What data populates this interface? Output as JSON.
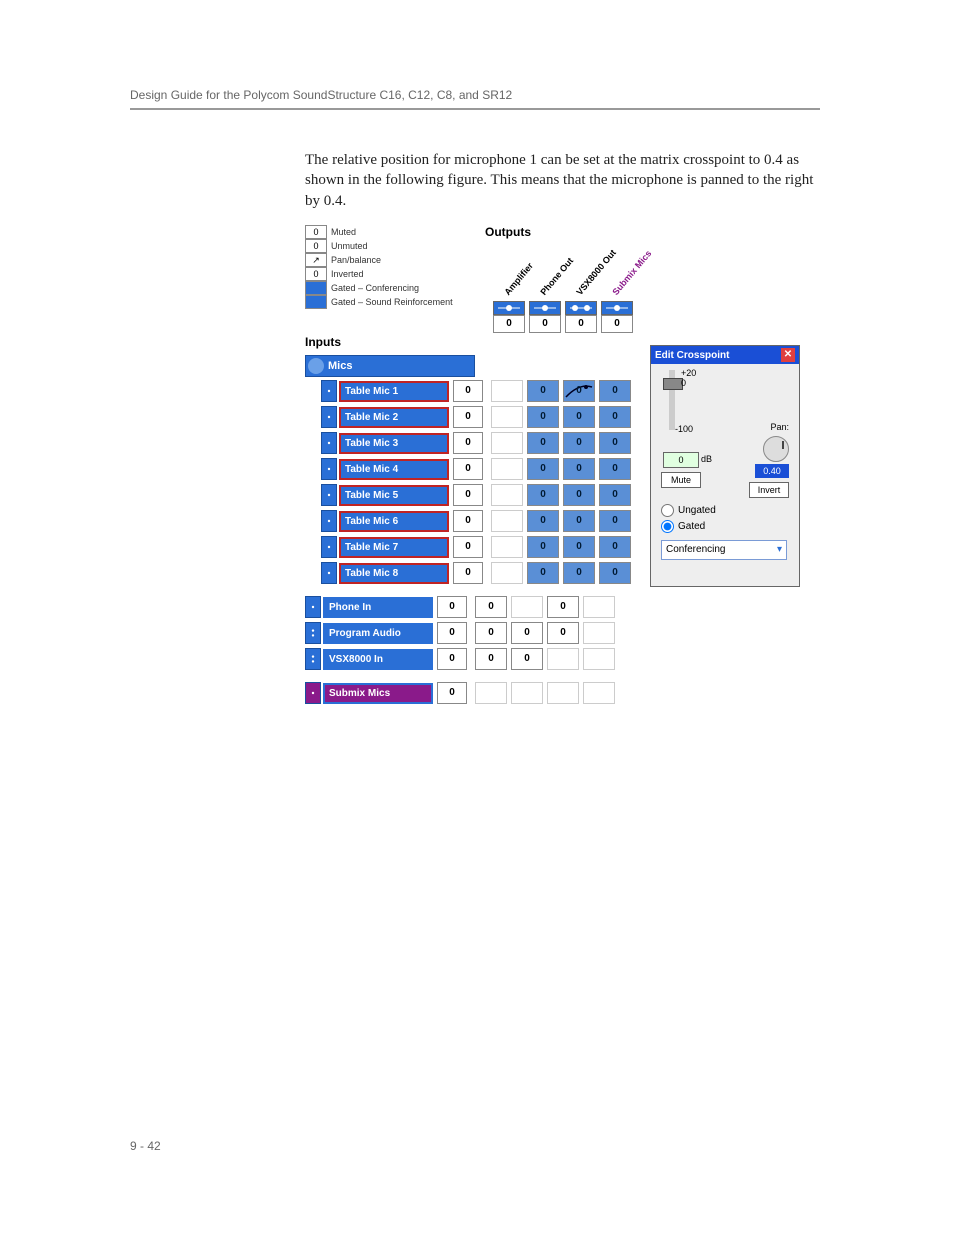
{
  "header": "Design Guide for the Polycom SoundStructure C16, C12, C8, and SR12",
  "body_text": "The relative position for microphone 1 can be set at the matrix crosspoint to 0.4 as shown in the following figure. This means that the microphone is panned to the right by 0.4.",
  "page_num": "9 - 42",
  "legend": [
    {
      "sw": "0",
      "txt": "Muted",
      "cls": ""
    },
    {
      "sw": "0",
      "txt": "Unmuted",
      "cls": ""
    },
    {
      "sw": "↗",
      "txt": "Pan/balance",
      "cls": ""
    },
    {
      "sw": "0",
      "txt": "Inverted",
      "cls": ""
    },
    {
      "sw": "",
      "txt": "Gated – Conferencing",
      "cls": "blue"
    },
    {
      "sw": "",
      "txt": "Gated – Sound Reinforcement",
      "cls": "blue"
    }
  ],
  "labels": {
    "outputs": "Outputs",
    "inputs": "Inputs",
    "mics": "Mics"
  },
  "outputs": [
    {
      "name": "Amplifier",
      "ind": "mono",
      "mag": false
    },
    {
      "name": "Phone Out",
      "ind": "mono",
      "mag": false
    },
    {
      "name": "VSX8000 Out",
      "ind": "stereo",
      "mag": false
    },
    {
      "name": "Submix Mics",
      "ind": "mono",
      "mag": true
    }
  ],
  "mic_rows": [
    {
      "name": "Table Mic 1",
      "pan": true
    },
    {
      "name": "Table Mic 2",
      "pan": false
    },
    {
      "name": "Table Mic 3",
      "pan": false
    },
    {
      "name": "Table Mic 4",
      "pan": false
    },
    {
      "name": "Table Mic 5",
      "pan": false
    },
    {
      "name": "Table Mic 6",
      "pan": false
    },
    {
      "name": "Table Mic 7",
      "pan": false
    },
    {
      "name": "Table Mic 8",
      "pan": false
    }
  ],
  "mic_cells_blue": [
    1,
    2,
    3
  ],
  "extra_rows": [
    {
      "name": "Phone In",
      "ind": "mono",
      "border": "none",
      "cells": [
        "w",
        "e",
        "w",
        "e"
      ]
    },
    {
      "name": "Program Audio",
      "ind": "stereo",
      "border": "none",
      "cells": [
        "w",
        "w",
        "w",
        "e"
      ]
    },
    {
      "name": "VSX8000 In",
      "ind": "stereo",
      "border": "none",
      "cells": [
        "w",
        "w",
        "e",
        "e"
      ]
    }
  ],
  "submix_row": {
    "name": "Submix Mics",
    "ind": "mono",
    "border": "none",
    "cells": [
      "e",
      "e",
      "e",
      "e"
    ]
  },
  "popup": {
    "title": "Edit Crosspoint",
    "tick20": "+20",
    "tick0": "0",
    "tickm100": "-100",
    "pan_label": "Pan:",
    "db_val": "0",
    "db_lbl": "dB",
    "mute": "Mute",
    "pan_val": "0.40",
    "invert": "Invert",
    "ungated": "Ungated",
    "gated": "Gated",
    "mode": "Conferencing"
  },
  "colors": {
    "blue": "#2a6fd6",
    "magenta": "#8a1a8a",
    "cell_blue": "#5a8fd6"
  }
}
